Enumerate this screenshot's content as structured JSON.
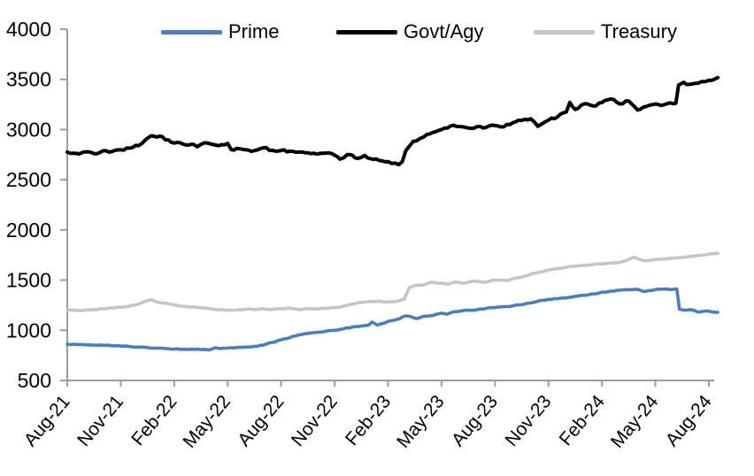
{
  "chart_data": {
    "type": "line",
    "title": "",
    "xlabel": "",
    "ylabel": "",
    "legend_position": "top",
    "grid": false,
    "y_axis": {
      "min": 500,
      "max": 4000,
      "tick_step": 500,
      "ticks": [
        500,
        1000,
        1500,
        2000,
        2500,
        3000,
        3500,
        4000
      ]
    },
    "x_axis": {
      "unit": "months since Aug-2021",
      "range_months": [
        0,
        36.3
      ],
      "ticks": [
        {
          "m": 0,
          "label": "Aug-21"
        },
        {
          "m": 3,
          "label": "Nov-21"
        },
        {
          "m": 6,
          "label": "Feb-22"
        },
        {
          "m": 9,
          "label": "May-22"
        },
        {
          "m": 12,
          "label": "Aug-22"
        },
        {
          "m": 15,
          "label": "Nov-22"
        },
        {
          "m": 18,
          "label": "Feb-23"
        },
        {
          "m": 21,
          "label": "May-23"
        },
        {
          "m": 24,
          "label": "Aug-23"
        },
        {
          "m": 27,
          "label": "Nov-23"
        },
        {
          "m": 30,
          "label": "Feb-24"
        },
        {
          "m": 33,
          "label": "May-24"
        },
        {
          "m": 36,
          "label": "Aug-24"
        }
      ]
    },
    "axis_color": "#9d9d9d",
    "series": [
      {
        "name": "Prime",
        "color": "#4a7ebc",
        "stroke_width": 3.6,
        "jitter": 4,
        "points": [
          [
            0,
            862
          ],
          [
            0.5,
            858
          ],
          [
            1,
            856
          ],
          [
            1.5,
            852
          ],
          [
            2,
            850
          ],
          [
            2.5,
            846
          ],
          [
            3,
            842
          ],
          [
            3.5,
            838
          ],
          [
            4,
            832
          ],
          [
            4.5,
            828
          ],
          [
            5,
            822
          ],
          [
            5.5,
            818
          ],
          [
            6,
            812
          ],
          [
            6.5,
            810
          ],
          [
            7,
            812
          ],
          [
            7.5,
            808
          ],
          [
            8,
            805
          ],
          [
            8.3,
            826
          ],
          [
            8.6,
            818
          ],
          [
            9,
            822
          ],
          [
            9.5,
            828
          ],
          [
            10,
            832
          ],
          [
            10.5,
            840
          ],
          [
            11,
            852
          ],
          [
            11.2,
            865
          ],
          [
            11.5,
            878
          ],
          [
            12,
            905
          ],
          [
            12.5,
            928
          ],
          [
            13,
            955
          ],
          [
            13.5,
            968
          ],
          [
            14,
            980
          ],
          [
            14.5,
            990
          ],
          [
            15,
            1000
          ],
          [
            15.5,
            1015
          ],
          [
            16,
            1032
          ],
          [
            16.5,
            1042
          ],
          [
            16.9,
            1050
          ],
          [
            17.1,
            1082
          ],
          [
            17.4,
            1052
          ],
          [
            18,
            1088
          ],
          [
            18.5,
            1108
          ],
          [
            19,
            1143
          ],
          [
            19.3,
            1135
          ],
          [
            19.6,
            1116
          ],
          [
            20,
            1140
          ],
          [
            20.5,
            1146
          ],
          [
            21,
            1170
          ],
          [
            21.3,
            1160
          ],
          [
            21.7,
            1185
          ],
          [
            22,
            1190
          ],
          [
            22.5,
            1200
          ],
          [
            23,
            1205
          ],
          [
            23.5,
            1218
          ],
          [
            24,
            1226
          ],
          [
            24.5,
            1235
          ],
          [
            25,
            1243
          ],
          [
            25.5,
            1255
          ],
          [
            26,
            1272
          ],
          [
            26.5,
            1295
          ],
          [
            27,
            1308
          ],
          [
            27.5,
            1315
          ],
          [
            28,
            1322
          ],
          [
            28.5,
            1338
          ],
          [
            29,
            1348
          ],
          [
            29.5,
            1362
          ],
          [
            30,
            1380
          ],
          [
            30.5,
            1390
          ],
          [
            31,
            1398
          ],
          [
            31.5,
            1405
          ],
          [
            32,
            1408
          ],
          [
            32.4,
            1385
          ],
          [
            33,
            1405
          ],
          [
            33.5,
            1410
          ],
          [
            34,
            1408
          ],
          [
            34.2,
            1412
          ],
          [
            34.35,
            1210
          ],
          [
            34.7,
            1200
          ],
          [
            35,
            1205
          ],
          [
            35.4,
            1180
          ],
          [
            35.8,
            1192
          ],
          [
            36.2,
            1182
          ],
          [
            36.5,
            1180
          ]
        ]
      },
      {
        "name": "Govt/Agy",
        "color": "#000000",
        "stroke_width": 4,
        "jitter": 11,
        "points": [
          [
            0,
            2775
          ],
          [
            0.5,
            2762
          ],
          [
            1,
            2778
          ],
          [
            1.5,
            2760
          ],
          [
            2,
            2788
          ],
          [
            2.5,
            2780
          ],
          [
            3,
            2798
          ],
          [
            3.5,
            2815
          ],
          [
            4,
            2840
          ],
          [
            4.4,
            2900
          ],
          [
            4.7,
            2938
          ],
          [
            5,
            2925
          ],
          [
            5.2,
            2935
          ],
          [
            5.5,
            2898
          ],
          [
            6,
            2865
          ],
          [
            6.5,
            2855
          ],
          [
            7,
            2855
          ],
          [
            7.3,
            2828
          ],
          [
            7.7,
            2868
          ],
          [
            8,
            2858
          ],
          [
            8.5,
            2840
          ],
          [
            9,
            2862
          ],
          [
            9.2,
            2800
          ],
          [
            9.5,
            2812
          ],
          [
            10,
            2798
          ],
          [
            10.5,
            2790
          ],
          [
            11,
            2818
          ],
          [
            11.5,
            2795
          ],
          [
            12,
            2792
          ],
          [
            12.5,
            2785
          ],
          [
            13,
            2775
          ],
          [
            13.5,
            2768
          ],
          [
            14,
            2755
          ],
          [
            14.5,
            2765
          ],
          [
            15,
            2745
          ],
          [
            15.3,
            2705
          ],
          [
            15.7,
            2750
          ],
          [
            16,
            2745
          ],
          [
            16.3,
            2712
          ],
          [
            16.7,
            2742
          ],
          [
            17,
            2710
          ],
          [
            17.5,
            2692
          ],
          [
            18,
            2680
          ],
          [
            18.4,
            2665
          ],
          [
            18.6,
            2650
          ],
          [
            18.8,
            2680
          ],
          [
            19,
            2790
          ],
          [
            19.4,
            2880
          ],
          [
            20,
            2925
          ],
          [
            20.5,
            2970
          ],
          [
            21,
            3000
          ],
          [
            21.5,
            3035
          ],
          [
            22,
            3030
          ],
          [
            22.5,
            3015
          ],
          [
            23,
            3030
          ],
          [
            23.5,
            3022
          ],
          [
            24,
            3040
          ],
          [
            24.5,
            3028
          ],
          [
            25,
            3068
          ],
          [
            25.5,
            3090
          ],
          [
            26,
            3108
          ],
          [
            26.4,
            3032
          ],
          [
            26.8,
            3075
          ],
          [
            27,
            3095
          ],
          [
            27.5,
            3125
          ],
          [
            28,
            3175
          ],
          [
            28.2,
            3270
          ],
          [
            28.5,
            3200
          ],
          [
            29,
            3255
          ],
          [
            29.5,
            3235
          ],
          [
            30,
            3270
          ],
          [
            30.5,
            3305
          ],
          [
            31,
            3255
          ],
          [
            31.5,
            3285
          ],
          [
            32,
            3195
          ],
          [
            32.5,
            3230
          ],
          [
            33,
            3255
          ],
          [
            33.5,
            3248
          ],
          [
            34,
            3258
          ],
          [
            34.15,
            3262
          ],
          [
            34.3,
            3445
          ],
          [
            34.6,
            3470
          ],
          [
            34.9,
            3450
          ],
          [
            35.2,
            3460
          ],
          [
            35.6,
            3478
          ],
          [
            36,
            3490
          ],
          [
            36.3,
            3500
          ],
          [
            36.5,
            3518
          ]
        ]
      },
      {
        "name": "Treasury",
        "color": "#c6c6c6",
        "stroke_width": 3.6,
        "jitter": 4,
        "points": [
          [
            0,
            1205
          ],
          [
            0.5,
            1198
          ],
          [
            1,
            1200
          ],
          [
            1.5,
            1208
          ],
          [
            2,
            1214
          ],
          [
            2.5,
            1222
          ],
          [
            3,
            1230
          ],
          [
            3.5,
            1242
          ],
          [
            4,
            1260
          ],
          [
            4.4,
            1288
          ],
          [
            4.7,
            1302
          ],
          [
            5,
            1282
          ],
          [
            5.5,
            1270
          ],
          [
            6,
            1252
          ],
          [
            6.5,
            1240
          ],
          [
            7,
            1232
          ],
          [
            7.5,
            1222
          ],
          [
            8,
            1215
          ],
          [
            8.5,
            1205
          ],
          [
            9,
            1198
          ],
          [
            9.5,
            1202
          ],
          [
            10,
            1210
          ],
          [
            10.5,
            1206
          ],
          [
            11,
            1212
          ],
          [
            11.5,
            1208
          ],
          [
            12,
            1215
          ],
          [
            12.5,
            1220
          ],
          [
            13,
            1207
          ],
          [
            13.5,
            1214
          ],
          [
            14,
            1215
          ],
          [
            14.5,
            1220
          ],
          [
            15,
            1224
          ],
          [
            15.5,
            1240
          ],
          [
            16,
            1262
          ],
          [
            16.5,
            1278
          ],
          [
            17,
            1288
          ],
          [
            17.5,
            1290
          ],
          [
            18,
            1283
          ],
          [
            18.6,
            1293
          ],
          [
            18.9,
            1308
          ],
          [
            19.2,
            1428
          ],
          [
            19.5,
            1448
          ],
          [
            20,
            1452
          ],
          [
            20.4,
            1478
          ],
          [
            21,
            1470
          ],
          [
            21.4,
            1460
          ],
          [
            21.8,
            1482
          ],
          [
            22.2,
            1468
          ],
          [
            22.6,
            1485
          ],
          [
            23,
            1488
          ],
          [
            23.4,
            1478
          ],
          [
            23.8,
            1497
          ],
          [
            24.3,
            1500
          ],
          [
            24.7,
            1494
          ],
          [
            25,
            1512
          ],
          [
            25.5,
            1530
          ],
          [
            26,
            1558
          ],
          [
            26.5,
            1580
          ],
          [
            27,
            1600
          ],
          [
            27.5,
            1615
          ],
          [
            28,
            1628
          ],
          [
            28.5,
            1638
          ],
          [
            29,
            1646
          ],
          [
            29.5,
            1655
          ],
          [
            30,
            1663
          ],
          [
            30.5,
            1668
          ],
          [
            31,
            1675
          ],
          [
            31.8,
            1728
          ],
          [
            32.4,
            1692
          ],
          [
            33,
            1706
          ],
          [
            33.5,
            1712
          ],
          [
            34,
            1718
          ],
          [
            34.5,
            1724
          ],
          [
            35,
            1738
          ],
          [
            35.5,
            1748
          ],
          [
            36,
            1758
          ],
          [
            36.5,
            1768
          ]
        ]
      }
    ]
  }
}
